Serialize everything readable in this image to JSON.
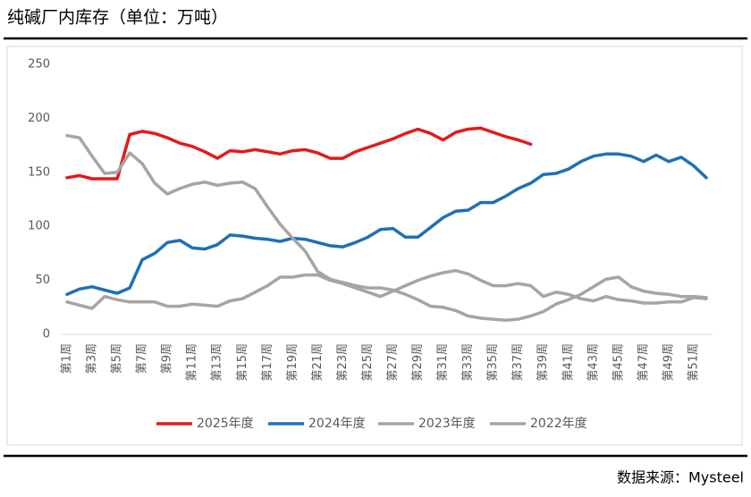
{
  "chart_data": {
    "type": "line",
    "title": "纯碱厂内库存（单位：万吨）",
    "source": "数据来源：Mysteel",
    "categories": [
      "第1周",
      null,
      "第3周",
      null,
      "第5周",
      null,
      "第7周",
      null,
      "第9周",
      null,
      "第11周",
      null,
      "第13周",
      null,
      "第15周",
      null,
      "第17周",
      null,
      "第19周",
      null,
      "第21周",
      null,
      "第23周",
      null,
      "第25周",
      null,
      "第27周",
      null,
      "第29周",
      null,
      "第31周",
      null,
      "第33周",
      null,
      "第35周",
      null,
      "第37周",
      null,
      "第39周",
      null,
      "第41周",
      null,
      "第43周",
      null,
      "第45周",
      null,
      "第47周",
      null,
      "第49周",
      null,
      "第51周",
      null
    ],
    "series": [
      {
        "name": "2025年度",
        "color": "#e31a1c",
        "values": [
          145,
          147,
          144,
          144,
          144,
          185,
          188,
          186,
          182,
          177,
          174,
          169,
          163,
          170,
          169,
          171,
          169,
          167,
          170,
          171,
          168,
          163,
          163,
          169,
          173,
          177,
          181,
          186,
          190,
          186,
          180,
          187,
          190,
          191,
          187,
          183,
          180,
          176,
          null,
          null,
          null,
          null,
          null,
          null,
          null,
          null,
          null,
          null,
          null,
          null,
          null,
          null
        ]
      },
      {
        "name": "2024年度",
        "color": "#1f6fb8",
        "values": [
          37,
          42,
          44,
          41,
          38,
          43,
          69,
          75,
          85,
          87,
          80,
          79,
          83,
          92,
          91,
          89,
          88,
          86,
          89,
          88,
          85,
          82,
          81,
          85,
          90,
          97,
          98,
          90,
          90,
          99,
          108,
          114,
          115,
          122,
          122,
          128,
          135,
          140,
          148,
          149,
          153,
          160,
          165,
          167,
          167,
          165,
          160,
          166,
          160,
          164,
          156,
          145
        ]
      },
      {
        "name": "2023年度",
        "color": "#a5a5a5",
        "values": [
          184,
          182,
          165,
          149,
          150,
          168,
          158,
          140,
          130,
          135,
          139,
          141,
          138,
          140,
          141,
          135,
          118,
          102,
          89,
          77,
          58,
          51,
          48,
          45,
          43,
          43,
          41,
          37,
          32,
          26,
          25,
          22,
          17,
          15,
          14,
          13,
          14,
          17,
          21,
          28,
          32,
          37,
          44,
          51,
          53,
          44,
          40,
          38,
          37,
          35,
          35,
          34
        ]
      },
      {
        "name": "2022年度",
        "color": "#a5a5a5",
        "values": [
          30,
          27,
          24,
          35,
          32,
          30,
          30,
          30,
          26,
          26,
          28,
          27,
          26,
          31,
          33,
          39,
          45,
          53,
          53,
          55,
          55,
          50,
          47,
          43,
          39,
          35,
          40,
          45,
          50,
          54,
          57,
          59,
          56,
          50,
          45,
          45,
          47,
          45,
          35,
          39,
          37,
          33,
          31,
          35,
          32,
          31,
          29,
          29,
          30,
          30,
          34,
          33
        ]
      }
    ],
    "ylim": [
      0,
      250
    ],
    "yticks": [
      0,
      50,
      100,
      150,
      200,
      250
    ],
    "grid": false
  }
}
